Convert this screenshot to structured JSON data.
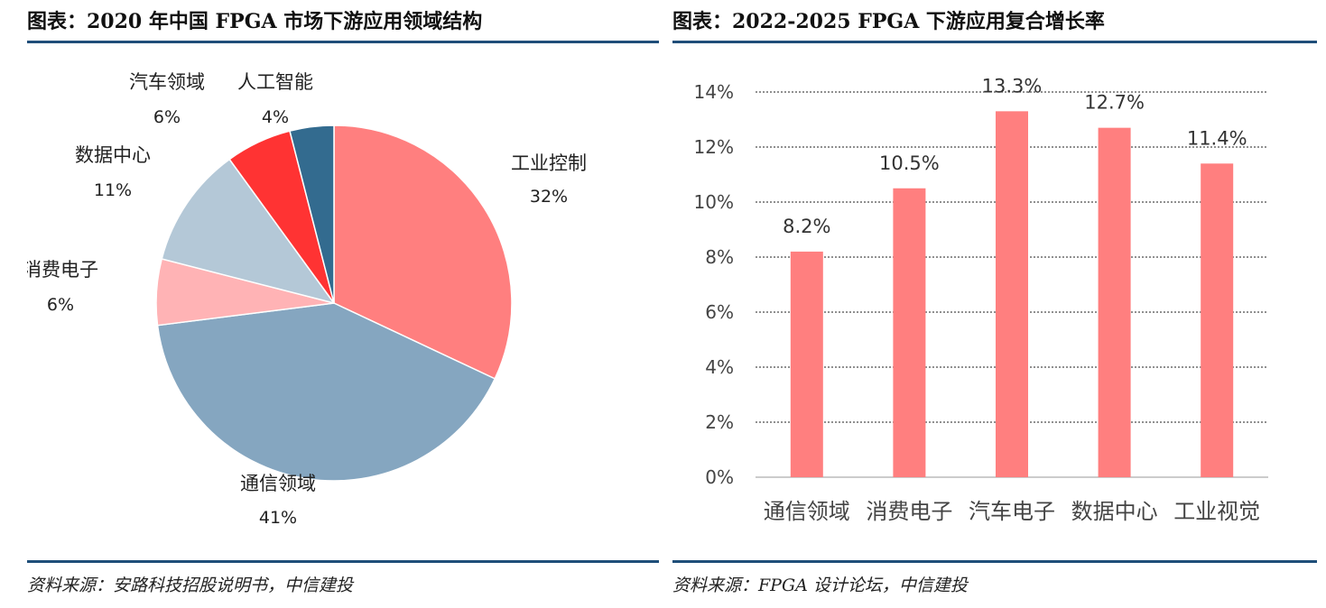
{
  "left_chart": {
    "heading": "图表：2020 年中国 FPGA 市场下游应用领域结构",
    "source": "资料来源：安路科技招股说明书，中信建投"
  },
  "right_chart": {
    "heading": "图表：2022-2025 FPGA 下游应用复合增长率",
    "source": "资料来源：FPGA 设计论坛，中信建投"
  },
  "chart_data": [
    {
      "type": "pie",
      "title": "",
      "slices": [
        {
          "label": "工业控制",
          "value": 32,
          "value_label": "32%",
          "color": "#ff7f7f"
        },
        {
          "label": "通信领域",
          "value": 41,
          "value_label": "41%",
          "color": "#85a6c0"
        },
        {
          "label": "消费电子",
          "value": 6,
          "value_label": "6%",
          "color": "#ffb3b5"
        },
        {
          "label": "数据中心",
          "value": 11,
          "value_label": "11%",
          "color": "#b4c8d7"
        },
        {
          "label": "汽车领域",
          "value": 6,
          "value_label": "6%",
          "color": "#ff3333"
        },
        {
          "label": "人工智能",
          "value": 4,
          "value_label": "4%",
          "color": "#336b8f"
        }
      ]
    },
    {
      "type": "bar",
      "title": "",
      "categories": [
        "通信领域",
        "消费电子",
        "汽车电子",
        "数据中心",
        "工业视觉"
      ],
      "values": [
        8.2,
        10.5,
        13.3,
        12.7,
        11.4
      ],
      "value_labels": [
        "8.2%",
        "10.5%",
        "13.3%",
        "12.7%",
        "11.4%"
      ],
      "ylim": [
        0,
        14
      ],
      "yticks": [
        "0%",
        "2%",
        "4%",
        "6%",
        "8%",
        "10%",
        "12%",
        "14%"
      ],
      "bar_color": "#ff7f7f",
      "grid": true
    }
  ]
}
